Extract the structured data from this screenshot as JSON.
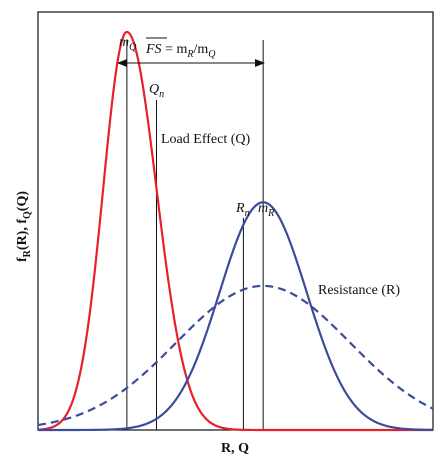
{
  "chart_data": {
    "type": "line",
    "xlabel": "R, Q",
    "ylabel_main": "f",
    "ylabel_sub_r": "R",
    "ylabel_paren_r": "(R), f",
    "ylabel_sub_q": "Q",
    "ylabel_paren_q": "(Q)",
    "annotations": {
      "mq": "m",
      "mq_sub": "Q",
      "fs_bar": "FS",
      "fs_eq": " = m",
      "fs_eq_sub": "R",
      "fs_slash": "/m",
      "fs_slash_sub": "Q",
      "qn": "Q",
      "qn_sub": "n",
      "rn": "R",
      "rn_sub": "n",
      "mr": "m",
      "mr_sub": "R",
      "load_effect": "Load Effect (Q)",
      "resistance": "Resistance (R)"
    },
    "xlim": [
      0,
      10
    ],
    "ylim": [
      0,
      1.05
    ],
    "series": [
      {
        "key": "load",
        "color": "#e8202a",
        "dash": "",
        "mean": 2.25,
        "sigma_left": 0.6,
        "sigma_right": 0.75,
        "peak": 1.0
      },
      {
        "key": "resistance",
        "color": "#3a4d9a",
        "dash": "",
        "mean": 5.7,
        "sigma": 1.1,
        "peak": 0.572
      },
      {
        "key": "resistance-dashed",
        "color": "#3a4d9a",
        "dash": "8,5",
        "mean": 5.7,
        "sigma": 2.2,
        "peak": 0.362
      }
    ],
    "vertical_lines": [
      {
        "key": "mq-line",
        "x": 2.25
      },
      {
        "key": "qn-line",
        "x": 3.0
      },
      {
        "key": "rn-line",
        "x": 5.2
      },
      {
        "key": "mr-line",
        "x": 5.7
      }
    ]
  }
}
